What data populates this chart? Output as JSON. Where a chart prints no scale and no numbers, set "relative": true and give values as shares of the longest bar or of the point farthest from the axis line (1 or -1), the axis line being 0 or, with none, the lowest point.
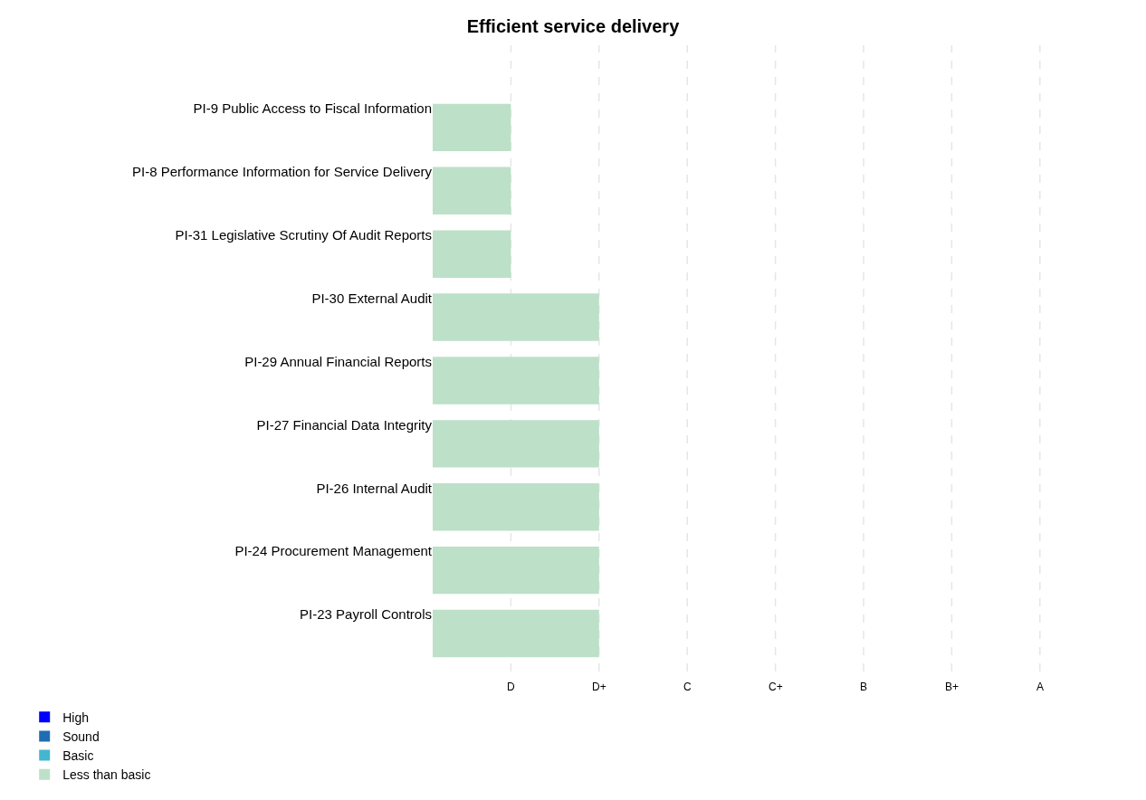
{
  "chart_data": {
    "type": "bar",
    "orientation": "horizontal",
    "title": "Efficient service delivery",
    "categories": [
      "PI-9 Public Access to Fiscal Information",
      "PI-8 Performance Information for Service Delivery",
      "PI-31 Legislative Scrutiny Of Audit Reports",
      "PI-30 External Audit",
      "PI-29 Annual Financial Reports",
      "PI-27 Financial Data Integrity",
      "PI-26 Internal Audit",
      "PI-24 Procurement Management",
      "PI-23 Payroll Controls"
    ],
    "series": [
      {
        "name": "High",
        "color": "#0000ff",
        "values": [
          null,
          null,
          null,
          null,
          null,
          null,
          null,
          null,
          null
        ]
      },
      {
        "name": "Sound",
        "color": "#1f6db3",
        "values": [
          null,
          null,
          null,
          null,
          null,
          null,
          null,
          null,
          null
        ]
      },
      {
        "name": "Basic",
        "color": "#44b6d0",
        "values": [
          null,
          null,
          null,
          null,
          null,
          null,
          null,
          null,
          null
        ]
      },
      {
        "name": "Less than basic",
        "color": "#bde0c8",
        "values": [
          0.47,
          0.47,
          0.47,
          1,
          1,
          1,
          1,
          1,
          1
        ]
      }
    ],
    "relative": true,
    "ref_lines": [
      {
        "axis": "x",
        "value": 0.47,
        "label": "D",
        "color": "#e6e6e6",
        "line_style": "dashed"
      },
      {
        "axis": "x",
        "value": 1,
        "label": "D+",
        "color": "#e6e6e6",
        "line_style": "dashed"
      },
      {
        "axis": "x",
        "value": 1.53,
        "label": "C",
        "color": "#e6e6e6",
        "line_style": "dashed"
      },
      {
        "axis": "x",
        "value": 2.06,
        "label": "C+",
        "color": "#e6e6e6",
        "line_style": "dashed"
      },
      {
        "axis": "x",
        "value": 2.59,
        "label": "B",
        "color": "#e6e6e6",
        "line_style": "dashed"
      },
      {
        "axis": "x",
        "value": 3.12,
        "label": "B+",
        "color": "#e6e6e6",
        "line_style": "dashed"
      },
      {
        "axis": "x",
        "value": 3.65,
        "label": "A",
        "color": "#e6e6e6",
        "line_style": "dashed"
      }
    ],
    "legend": "bottom left"
  }
}
